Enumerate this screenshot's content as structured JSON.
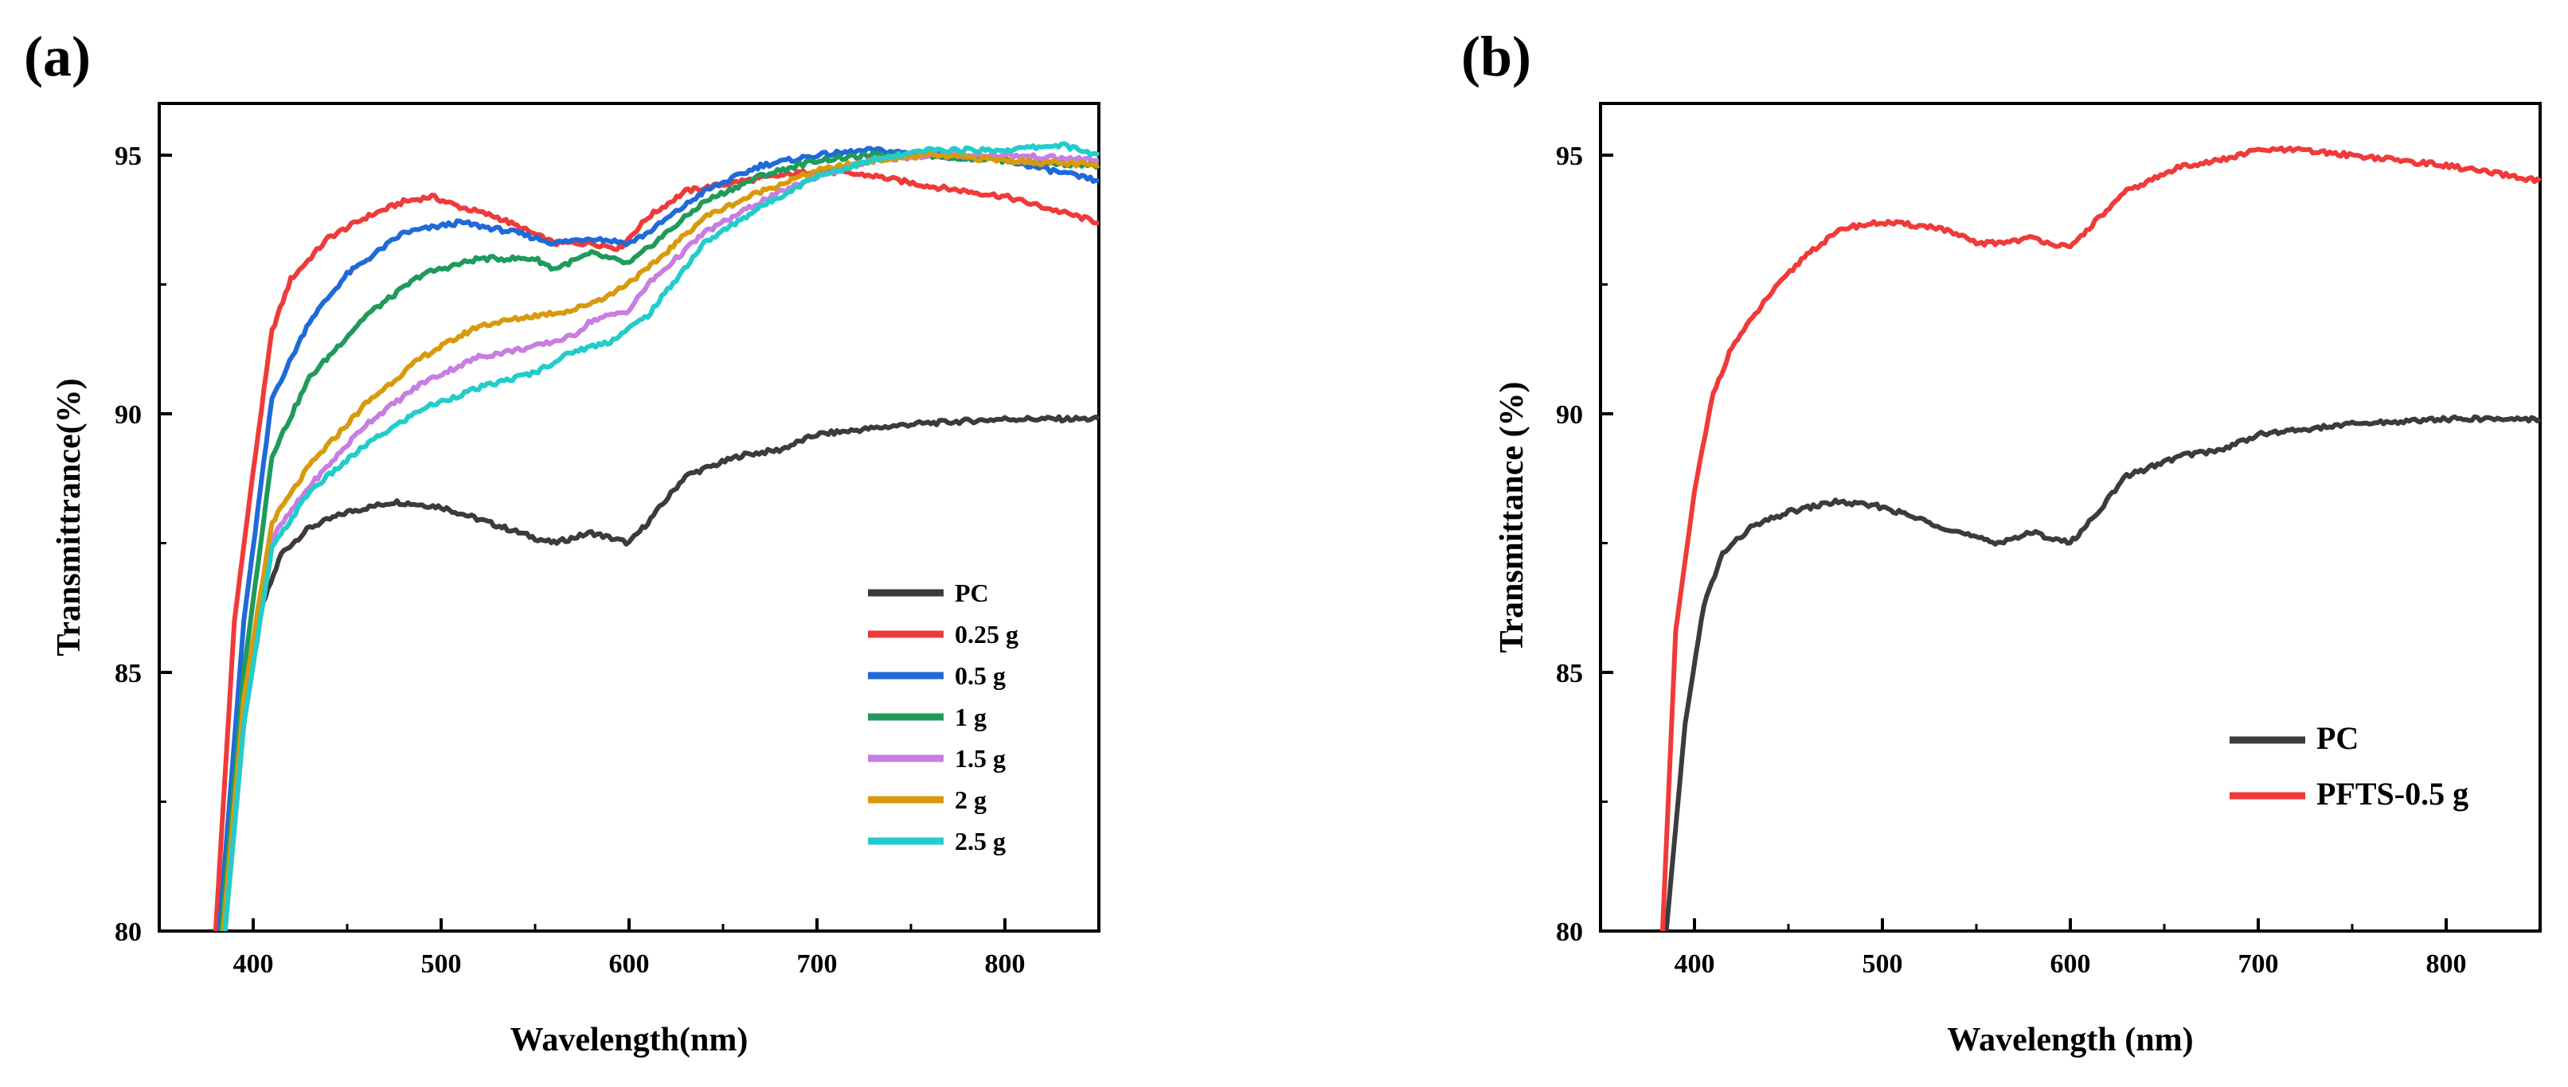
{
  "colors": {
    "PC": "#3b3b3b",
    "0.25 g": "#f03a3a",
    "0.5 g": "#1f6ad8",
    "1 g": "#1f9a5b",
    "1.5 g": "#c77ee0",
    "2 g": "#d89a0d",
    "2.5 g": "#23cccc"
  },
  "chart_data": [
    {
      "panel": "(a)",
      "type": "line",
      "xlabel": "Wavelength(nm)",
      "ylabel": "Transmittrance(%)",
      "xlim": [
        350,
        850
      ],
      "ylim": [
        80,
        96
      ],
      "xticks": [
        400,
        500,
        600,
        700,
        800
      ],
      "yticks": [
        80,
        85,
        90,
        95
      ],
      "legend_position": "bottom-right",
      "series": [
        {
          "name": "PC",
          "x": [
            385,
            395,
            405,
            415,
            430,
            450,
            475,
            500,
            525,
            550,
            560,
            580,
            600,
            610,
            630,
            660,
            680,
            700,
            750,
            800,
            850
          ],
          "y": [
            80,
            84,
            86.3,
            87.3,
            87.8,
            88.1,
            88.3,
            88.2,
            87.9,
            87.6,
            87.5,
            87.7,
            87.5,
            87.9,
            88.8,
            89.2,
            89.3,
            89.6,
            89.8,
            89.9,
            89.9
          ]
        },
        {
          "name": "0.25 g",
          "x": [
            380,
            390,
            400,
            410,
            420,
            440,
            460,
            480,
            495,
            510,
            530,
            560,
            580,
            595,
            610,
            630,
            660,
            700,
            730,
            760,
            800,
            850
          ],
          "y": [
            80,
            86,
            88.9,
            91.6,
            92.6,
            93.4,
            93.8,
            94.1,
            94.2,
            94,
            93.8,
            93.3,
            93.3,
            93.2,
            93.8,
            94.3,
            94.5,
            94.7,
            94.6,
            94.4,
            94.2,
            93.7
          ]
        },
        {
          "name": "0.5 g",
          "x": [
            382,
            395,
            410,
            430,
            450,
            480,
            510,
            540,
            560,
            580,
            600,
            610,
            640,
            670,
            700,
            730,
            760,
            800,
            850
          ],
          "y": [
            80,
            86,
            90.3,
            91.8,
            92.7,
            93.5,
            93.7,
            93.5,
            93.3,
            93.4,
            93.3,
            93.5,
            94.3,
            94.8,
            95,
            95.1,
            95,
            94.9,
            94.5
          ]
        },
        {
          "name": "1 g",
          "x": [
            383,
            395,
            410,
            430,
            460,
            490,
            520,
            550,
            560,
            580,
            600,
            610,
            640,
            670,
            700,
            730,
            760,
            800,
            850
          ],
          "y": [
            80,
            85,
            89.2,
            90.7,
            91.9,
            92.7,
            93,
            93,
            92.8,
            93.1,
            92.9,
            93.2,
            94.1,
            94.6,
            94.9,
            95,
            95,
            94.9,
            94.8
          ]
        },
        {
          "name": "1.5 g",
          "x": [
            384,
            395,
            410,
            430,
            460,
            490,
            520,
            550,
            570,
            580,
            600,
            610,
            640,
            670,
            700,
            730,
            760,
            800,
            850
          ],
          "y": [
            80,
            84.5,
            87.6,
            88.6,
            89.8,
            90.6,
            91.1,
            91.3,
            91.5,
            91.8,
            92,
            92.5,
            93.5,
            94.1,
            94.6,
            94.9,
            95,
            95,
            94.9
          ]
        },
        {
          "name": "2 g",
          "x": [
            384,
            395,
            410,
            430,
            460,
            490,
            520,
            550,
            570,
            590,
            610,
            640,
            670,
            700,
            730,
            760,
            800,
            850
          ],
          "y": [
            80,
            84.5,
            87.9,
            89,
            90.2,
            91.1,
            91.7,
            91.9,
            92,
            92.3,
            92.8,
            93.8,
            94.3,
            94.7,
            94.9,
            95,
            94.9,
            94.8
          ]
        },
        {
          "name": "2.5 g",
          "x": [
            385,
            395,
            410,
            430,
            460,
            490,
            520,
            550,
            570,
            590,
            610,
            640,
            670,
            700,
            730,
            760,
            800,
            830,
            850
          ],
          "y": [
            80,
            84,
            87.4,
            88.5,
            89.4,
            90.1,
            90.5,
            90.8,
            91.2,
            91.4,
            91.9,
            93.3,
            94,
            94.6,
            94.9,
            95.1,
            95.1,
            95.2,
            95
          ]
        }
      ]
    },
    {
      "panel": "(b)",
      "type": "line",
      "xlabel": "Wavelength (nm)",
      "ylabel": "Transmittance (%)",
      "xlim": [
        350,
        850
      ],
      "ylim": [
        80,
        96
      ],
      "xticks": [
        400,
        500,
        600,
        700,
        800
      ],
      "yticks": [
        80,
        85,
        90,
        95
      ],
      "legend_position": "bottom-right",
      "series": [
        {
          "name": "PC",
          "x": [
            385,
            395,
            405,
            415,
            430,
            450,
            475,
            500,
            525,
            550,
            560,
            580,
            600,
            610,
            630,
            660,
            680,
            700,
            750,
            800,
            850
          ],
          "y": [
            80,
            84,
            86.3,
            87.3,
            87.8,
            88.1,
            88.3,
            88.2,
            87.9,
            87.6,
            87.5,
            87.7,
            87.5,
            87.9,
            88.8,
            89.2,
            89.3,
            89.6,
            89.8,
            89.9,
            89.9
          ]
        },
        {
          "name": "PFTS-0.5 g",
          "x": [
            383,
            390,
            400,
            410,
            420,
            440,
            460,
            480,
            500,
            530,
            550,
            560,
            580,
            600,
            610,
            630,
            660,
            680,
            700,
            720,
            750,
            800,
            850
          ],
          "y": [
            80,
            85.8,
            88.5,
            90.4,
            91.3,
            92.3,
            93.1,
            93.6,
            93.7,
            93.6,
            93.3,
            93.3,
            93.4,
            93.2,
            93.6,
            94.3,
            94.8,
            94.9,
            95.1,
            95.1,
            95,
            94.8,
            94.5
          ]
        }
      ]
    }
  ]
}
